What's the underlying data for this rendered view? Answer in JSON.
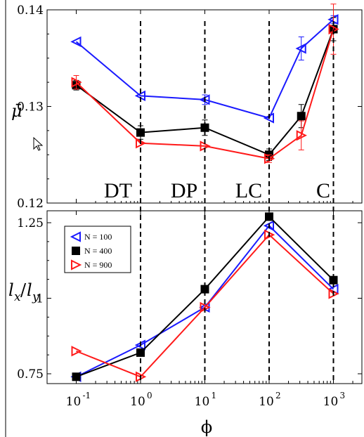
{
  "chart_data": [
    {
      "type": "line",
      "ylabel": "μ̄",
      "ylim": [
        0.12,
        0.14
      ],
      "xscale": "log",
      "x": [
        0.1,
        1,
        10,
        100,
        316,
        1000
      ],
      "yticks": [
        "0.12",
        "0.13",
        "0.14"
      ],
      "regions": [
        "DT",
        "DP",
        "LC",
        "C"
      ],
      "region_boundaries": [
        1,
        10,
        100,
        1000
      ],
      "series": [
        {
          "name": "N = 100",
          "color": "#1a1aff",
          "marker": "triangle-left",
          "values": [
            0.1367,
            0.1311,
            0.1307,
            0.1288,
            0.136,
            0.139
          ],
          "err": [
            0,
            0,
            0.0005,
            0,
            0.0012,
            0.0004
          ]
        },
        {
          "name": "N = 400",
          "color": "#000000",
          "marker": "square",
          "values": [
            0.1322,
            0.1273,
            0.1278,
            0.125,
            0.129,
            0.138
          ],
          "err": [
            0.0005,
            0.0007,
            0.0008,
            0.0006,
            0.0012,
            0.0012
          ]
        },
        {
          "name": "N = 900",
          "color": "#ff1a1a",
          "marker": "triangle-right",
          "values": [
            0.1325,
            0.1262,
            0.1259,
            0.1246,
            0.127,
            0.138
          ],
          "err": [
            0.0007,
            0,
            0,
            0.0004,
            0.0015,
            0.0026
          ]
        }
      ]
    },
    {
      "type": "line",
      "xlabel": "ϕ",
      "ylabel": "lx/ly",
      "ylabel_main": "l",
      "ylabel_sub1": "x",
      "ylabel_slash": "/",
      "ylabel_sub2": "y",
      "ylim": [
        0.72,
        1.28
      ],
      "xscale": "log",
      "x": [
        0.1,
        1,
        10,
        100,
        1000
      ],
      "yticks": [
        "0.75",
        "1",
        "1.25"
      ],
      "xticks": [
        {
          "base": "10",
          "exp": "-1"
        },
        {
          "base": "10",
          "exp": "0"
        },
        {
          "base": "10",
          "exp": "1"
        },
        {
          "base": "10",
          "exp": "2"
        },
        {
          "base": "10",
          "exp": "3"
        }
      ],
      "legend_position": "top-left",
      "series": [
        {
          "name": "N = 100",
          "color": "#1a1aff",
          "marker": "triangle-left",
          "values": [
            0.74,
            0.845,
            0.97,
            1.24,
            1.03
          ]
        },
        {
          "name": "N = 400",
          "color": "#000000",
          "marker": "square",
          "values": [
            0.74,
            0.82,
            1.03,
            1.27,
            1.06
          ]
        },
        {
          "name": "N = 900",
          "color": "#ff1a1a",
          "marker": "triangle-right",
          "values": [
            0.825,
            0.74,
            0.97,
            1.21,
            1.015
          ]
        }
      ]
    }
  ]
}
